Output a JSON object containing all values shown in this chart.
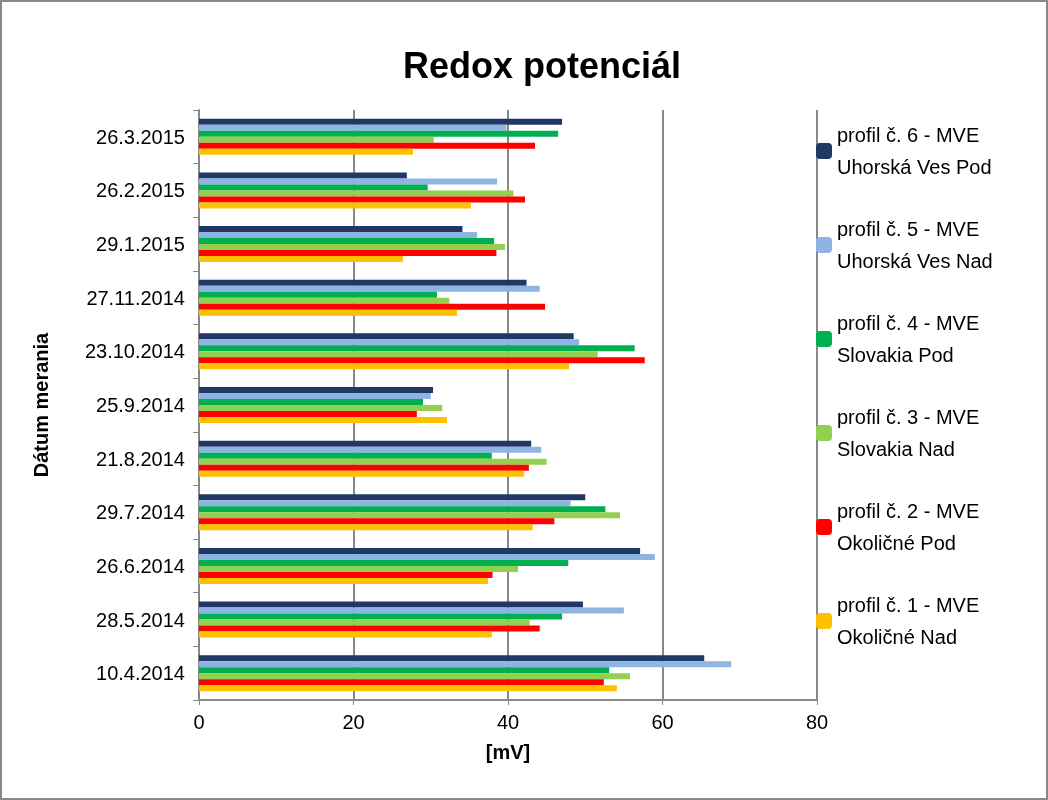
{
  "chart_data": {
    "type": "bar",
    "orientation": "horizontal",
    "title": "Redox potenciál",
    "xlabel": "[mV]",
    "ylabel": "Dátum merania",
    "categories": [
      "26.3.2015",
      "26.2.2015",
      "29.1.2015",
      "27.11.2014",
      "23.10.2014",
      "25.9.2014",
      "21.8.2014",
      "29.7.2014",
      "26.6.2014",
      "28.5.2014",
      "10.4.2014"
    ],
    "series": [
      {
        "name": "profil č. 6 - MVE Uhorská Ves Pod",
        "color": "#1f3864",
        "values": [
          47.0,
          26.9,
          34.1,
          42.4,
          48.5,
          30.3,
          43.0,
          50.0,
          57.1,
          49.7,
          65.4
        ]
      },
      {
        "name": "profil č. 5 - MVE Uhorská Ves Nad",
        "color": "#8eb4e3",
        "values": [
          39.8,
          38.6,
          36.0,
          44.1,
          49.2,
          30.0,
          44.3,
          48.1,
          59.0,
          55.0,
          68.9
        ]
      },
      {
        "name": "profil č. 4 - MVE Slovakia Pod",
        "color": "#00b050",
        "values": [
          46.5,
          29.6,
          38.2,
          30.8,
          56.4,
          29.0,
          37.9,
          52.6,
          47.8,
          47.0,
          53.1
        ]
      },
      {
        "name": "profil č. 3 - MVE Slovakia Nad",
        "color": "#92d050",
        "values": [
          30.4,
          40.7,
          39.6,
          32.4,
          51.6,
          31.5,
          45.0,
          54.5,
          41.3,
          42.8,
          55.8
        ]
      },
      {
        "name": "profil č. 2 - MVE Okoličné Pod",
        "color": "#ff0000",
        "values": [
          43.5,
          42.2,
          38.5,
          44.8,
          57.7,
          28.2,
          42.7,
          46.0,
          38.0,
          44.1,
          52.4
        ]
      },
      {
        "name": "profil č. 1 - MVE Okoličné Nad",
        "color": "#ffc000",
        "values": [
          27.7,
          35.2,
          26.4,
          33.4,
          47.9,
          32.1,
          42.1,
          43.2,
          37.4,
          37.9,
          54.1
        ]
      }
    ],
    "xlim": [
      0,
      80
    ],
    "xticks": [
      0,
      20,
      40,
      60,
      80
    ],
    "grid": "x",
    "legend": "right"
  }
}
